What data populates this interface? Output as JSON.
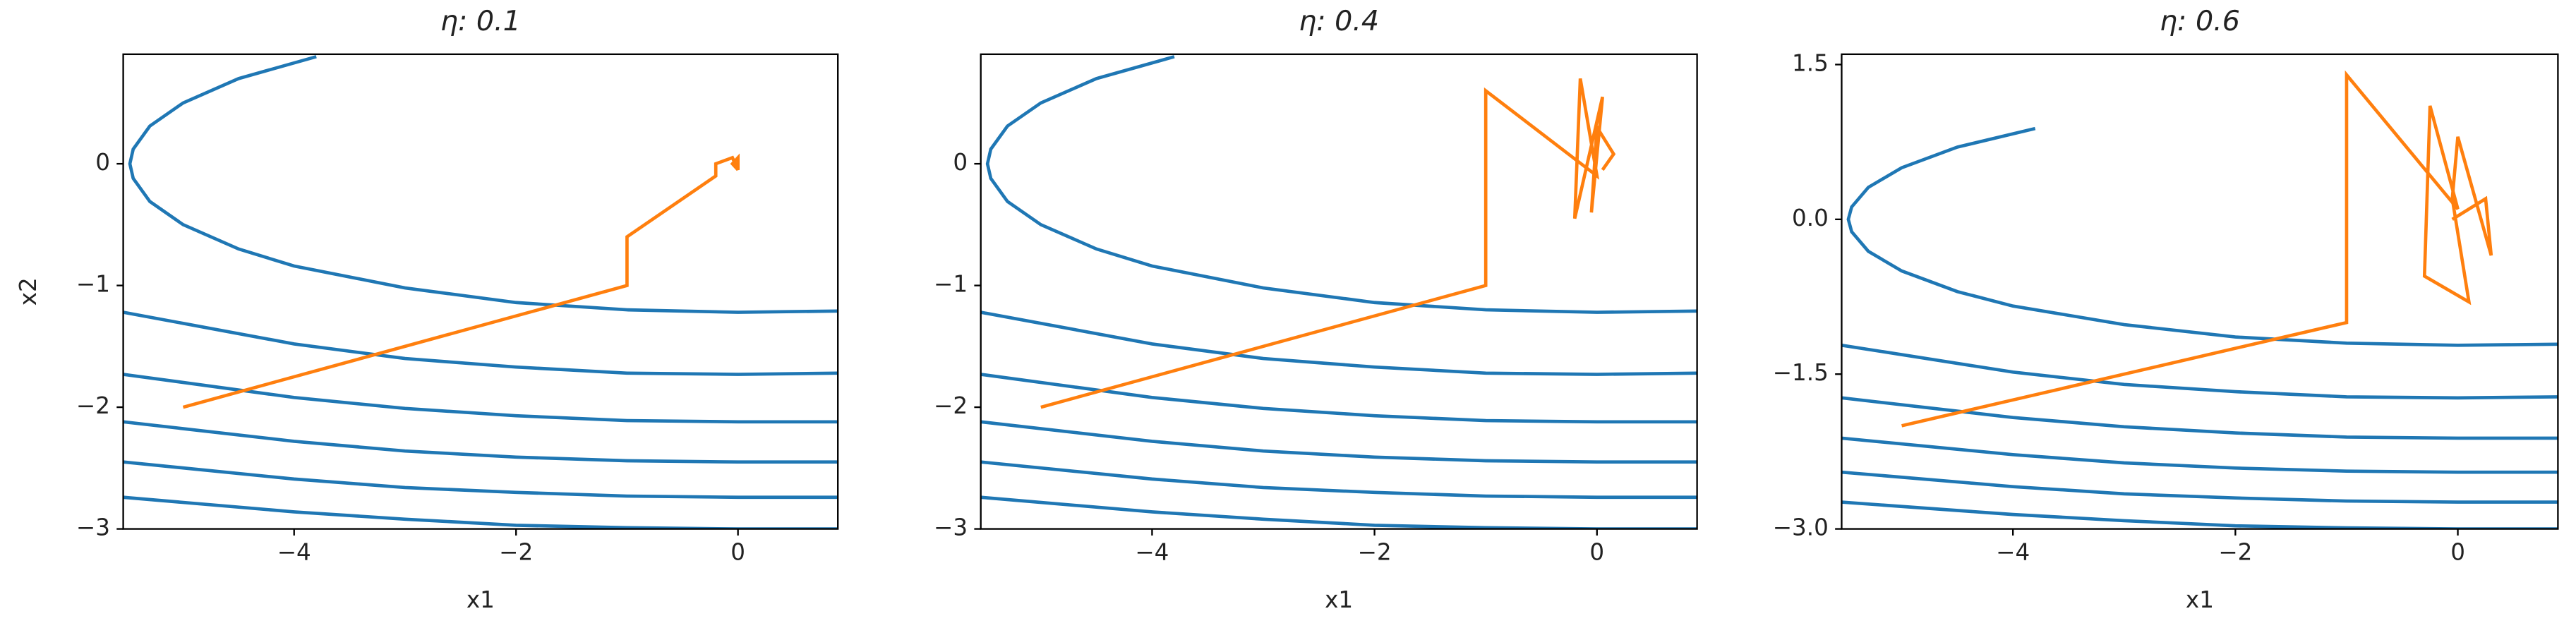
{
  "chart_data": [
    {
      "type": "line",
      "title": "η: 0.1",
      "xlabel": "x1",
      "ylabel": "x2",
      "xlim": [
        -5.54,
        0.9
      ],
      "ylim": [
        -3,
        0.9
      ],
      "xticks": [
        {
          "value": -4,
          "label": "−4"
        },
        {
          "value": -2,
          "label": "−2"
        },
        0
      ],
      "yticks": [
        {
          "value": -3,
          "label": "−3"
        },
        {
          "value": -2,
          "label": "−2"
        },
        {
          "value": -1,
          "label": "−1"
        },
        0
      ],
      "series": [
        {
          "color": "#1f77b4",
          "x": [
            -3.8,
            -4.5,
            -5,
            -5.3,
            -5.45,
            -5.48,
            -5.45,
            -5.3,
            -5,
            -4.5,
            -4,
            -3,
            -2,
            -1,
            0,
            0.9
          ],
          "values": [
            0.88,
            0.7,
            0.5,
            0.31,
            0.12,
            0,
            -0.12,
            -0.31,
            -0.5,
            -0.7,
            -0.84,
            -1.02,
            -1.14,
            -1.2,
            -1.22,
            -1.21
          ]
        },
        {
          "color": "#1f77b4",
          "x": [
            -5.54,
            -4,
            -3,
            -2,
            -1,
            0,
            0.9
          ],
          "values": [
            -1.22,
            -1.48,
            -1.6,
            -1.67,
            -1.72,
            -1.73,
            -1.72
          ]
        },
        {
          "color": "#1f77b4",
          "x": [
            -5.54,
            -4,
            -3,
            -2,
            -1,
            0,
            0.9
          ],
          "values": [
            -1.73,
            -1.92,
            -2.01,
            -2.07,
            -2.11,
            -2.12,
            -2.12
          ]
        },
        {
          "color": "#1f77b4",
          "x": [
            -5.54,
            -4,
            -3,
            -2,
            -1,
            0,
            0.9
          ],
          "values": [
            -2.12,
            -2.28,
            -2.36,
            -2.41,
            -2.44,
            -2.45,
            -2.45
          ]
        },
        {
          "color": "#1f77b4",
          "x": [
            -5.54,
            -4,
            -3,
            -2,
            -1,
            0,
            0.9
          ],
          "values": [
            -2.45,
            -2.59,
            -2.66,
            -2.7,
            -2.73,
            -2.74,
            -2.74
          ]
        },
        {
          "color": "#1f77b4",
          "x": [
            -5.54,
            -4,
            -3,
            -2,
            -1,
            0,
            0.9
          ],
          "values": [
            -2.74,
            -2.86,
            -2.92,
            -2.97,
            -2.99,
            -3,
            -3
          ]
        },
        {
          "color": "#ff7f0e",
          "x": [
            -5,
            -1,
            -1,
            -0.2,
            -0.2,
            -0.05,
            0,
            0,
            -0.05,
            0
          ],
          "values": [
            -2,
            -1,
            -0.6,
            -0.1,
            0,
            0.05,
            -0.05,
            0.05,
            0,
            -0.05
          ]
        }
      ]
    },
    {
      "type": "line",
      "title": "η: 0.4",
      "xlabel": "x1",
      "xlim": [
        -5.54,
        0.9
      ],
      "ylim": [
        -3,
        0.9
      ],
      "xticks": [
        {
          "value": -4,
          "label": "−4"
        },
        {
          "value": -2,
          "label": "−2"
        },
        0
      ],
      "yticks": [
        {
          "value": -3,
          "label": "−3"
        },
        {
          "value": -2,
          "label": "−2"
        },
        {
          "value": -1,
          "label": "−1"
        },
        0
      ],
      "series": [
        {
          "color": "#1f77b4",
          "x": [
            -3.8,
            -4.5,
            -5,
            -5.3,
            -5.45,
            -5.48,
            -5.45,
            -5.3,
            -5,
            -4.5,
            -4,
            -3,
            -2,
            -1,
            0,
            0.9
          ],
          "values": [
            0.88,
            0.7,
            0.5,
            0.31,
            0.12,
            0,
            -0.12,
            -0.31,
            -0.5,
            -0.7,
            -0.84,
            -1.02,
            -1.14,
            -1.2,
            -1.22,
            -1.21
          ]
        },
        {
          "color": "#1f77b4",
          "x": [
            -5.54,
            -4,
            -3,
            -2,
            -1,
            0,
            0.9
          ],
          "values": [
            -1.22,
            -1.48,
            -1.6,
            -1.67,
            -1.72,
            -1.73,
            -1.72
          ]
        },
        {
          "color": "#1f77b4",
          "x": [
            -5.54,
            -4,
            -3,
            -2,
            -1,
            0,
            0.9
          ],
          "values": [
            -1.73,
            -1.92,
            -2.01,
            -2.07,
            -2.11,
            -2.12,
            -2.12
          ]
        },
        {
          "color": "#1f77b4",
          "x": [
            -5.54,
            -4,
            -3,
            -2,
            -1,
            0,
            0.9
          ],
          "values": [
            -2.12,
            -2.28,
            -2.36,
            -2.41,
            -2.44,
            -2.45,
            -2.45
          ]
        },
        {
          "color": "#1f77b4",
          "x": [
            -5.54,
            -4,
            -3,
            -2,
            -1,
            0,
            0.9
          ],
          "values": [
            -2.45,
            -2.59,
            -2.66,
            -2.7,
            -2.73,
            -2.74,
            -2.74
          ]
        },
        {
          "color": "#1f77b4",
          "x": [
            -5.54,
            -4,
            -3,
            -2,
            -1,
            0,
            0.9
          ],
          "values": [
            -2.74,
            -2.86,
            -2.92,
            -2.97,
            -2.99,
            -3,
            -3
          ]
        },
        {
          "color": "#ff7f0e",
          "x": [
            -5,
            -1,
            -1,
            0,
            -0.15,
            -0.2,
            0.05,
            -0.05,
            0,
            0.15,
            0.05
          ],
          "values": [
            -2,
            -1,
            0.6,
            -0.1,
            0.7,
            -0.45,
            0.55,
            -0.4,
            0.3,
            0.08,
            -0.05
          ]
        }
      ]
    },
    {
      "type": "line",
      "title": "η: 0.6",
      "xlabel": "x1",
      "xlim": [
        -5.54,
        0.9
      ],
      "ylim": [
        -3,
        1.6
      ],
      "xticks": [
        {
          "value": -4,
          "label": "−4"
        },
        {
          "value": -2,
          "label": "−2"
        },
        0
      ],
      "yticks": [
        {
          "value": -3,
          "label": "−3.0"
        },
        {
          "value": -1.5,
          "label": "−1.5"
        },
        {
          "value": 0,
          "label": "0.0"
        },
        1.5
      ],
      "series": [
        {
          "color": "#1f77b4",
          "x": [
            -3.8,
            -4.5,
            -5,
            -5.3,
            -5.45,
            -5.48,
            -5.45,
            -5.3,
            -5,
            -4.5,
            -4,
            -3,
            -2,
            -1,
            0,
            0.9
          ],
          "values": [
            0.88,
            0.7,
            0.5,
            0.31,
            0.12,
            0,
            -0.12,
            -0.31,
            -0.5,
            -0.7,
            -0.84,
            -1.02,
            -1.14,
            -1.2,
            -1.22,
            -1.21
          ]
        },
        {
          "color": "#1f77b4",
          "x": [
            -5.54,
            -4,
            -3,
            -2,
            -1,
            0,
            0.9
          ],
          "values": [
            -1.22,
            -1.48,
            -1.6,
            -1.67,
            -1.72,
            -1.73,
            -1.72
          ]
        },
        {
          "color": "#1f77b4",
          "x": [
            -5.54,
            -4,
            -3,
            -2,
            -1,
            0,
            0.9
          ],
          "values": [
            -1.73,
            -1.92,
            -2.01,
            -2.07,
            -2.11,
            -2.12,
            -2.12
          ]
        },
        {
          "color": "#1f77b4",
          "x": [
            -5.54,
            -4,
            -3,
            -2,
            -1,
            0,
            0.9
          ],
          "values": [
            -2.12,
            -2.28,
            -2.36,
            -2.41,
            -2.44,
            -2.45,
            -2.45
          ]
        },
        {
          "color": "#1f77b4",
          "x": [
            -5.54,
            -4,
            -3,
            -2,
            -1,
            0,
            0.9
          ],
          "values": [
            -2.45,
            -2.59,
            -2.66,
            -2.7,
            -2.73,
            -2.74,
            -2.74
          ]
        },
        {
          "color": "#1f77b4",
          "x": [
            -5.54,
            -4,
            -3,
            -2,
            -1,
            0,
            0.9
          ],
          "values": [
            -2.74,
            -2.86,
            -2.92,
            -2.97,
            -2.99,
            -3,
            -3
          ]
        },
        {
          "color": "#ff7f0e",
          "x": [
            -5,
            -1,
            -1,
            0,
            -0.25,
            -0.3,
            0.1,
            -0.05,
            0,
            0.3,
            0.25,
            -0.05
          ],
          "values": [
            -2,
            -1,
            1.4,
            0.1,
            1.1,
            -0.55,
            -0.8,
            0.2,
            0.8,
            -0.35,
            0.2,
            0
          ]
        }
      ]
    }
  ]
}
